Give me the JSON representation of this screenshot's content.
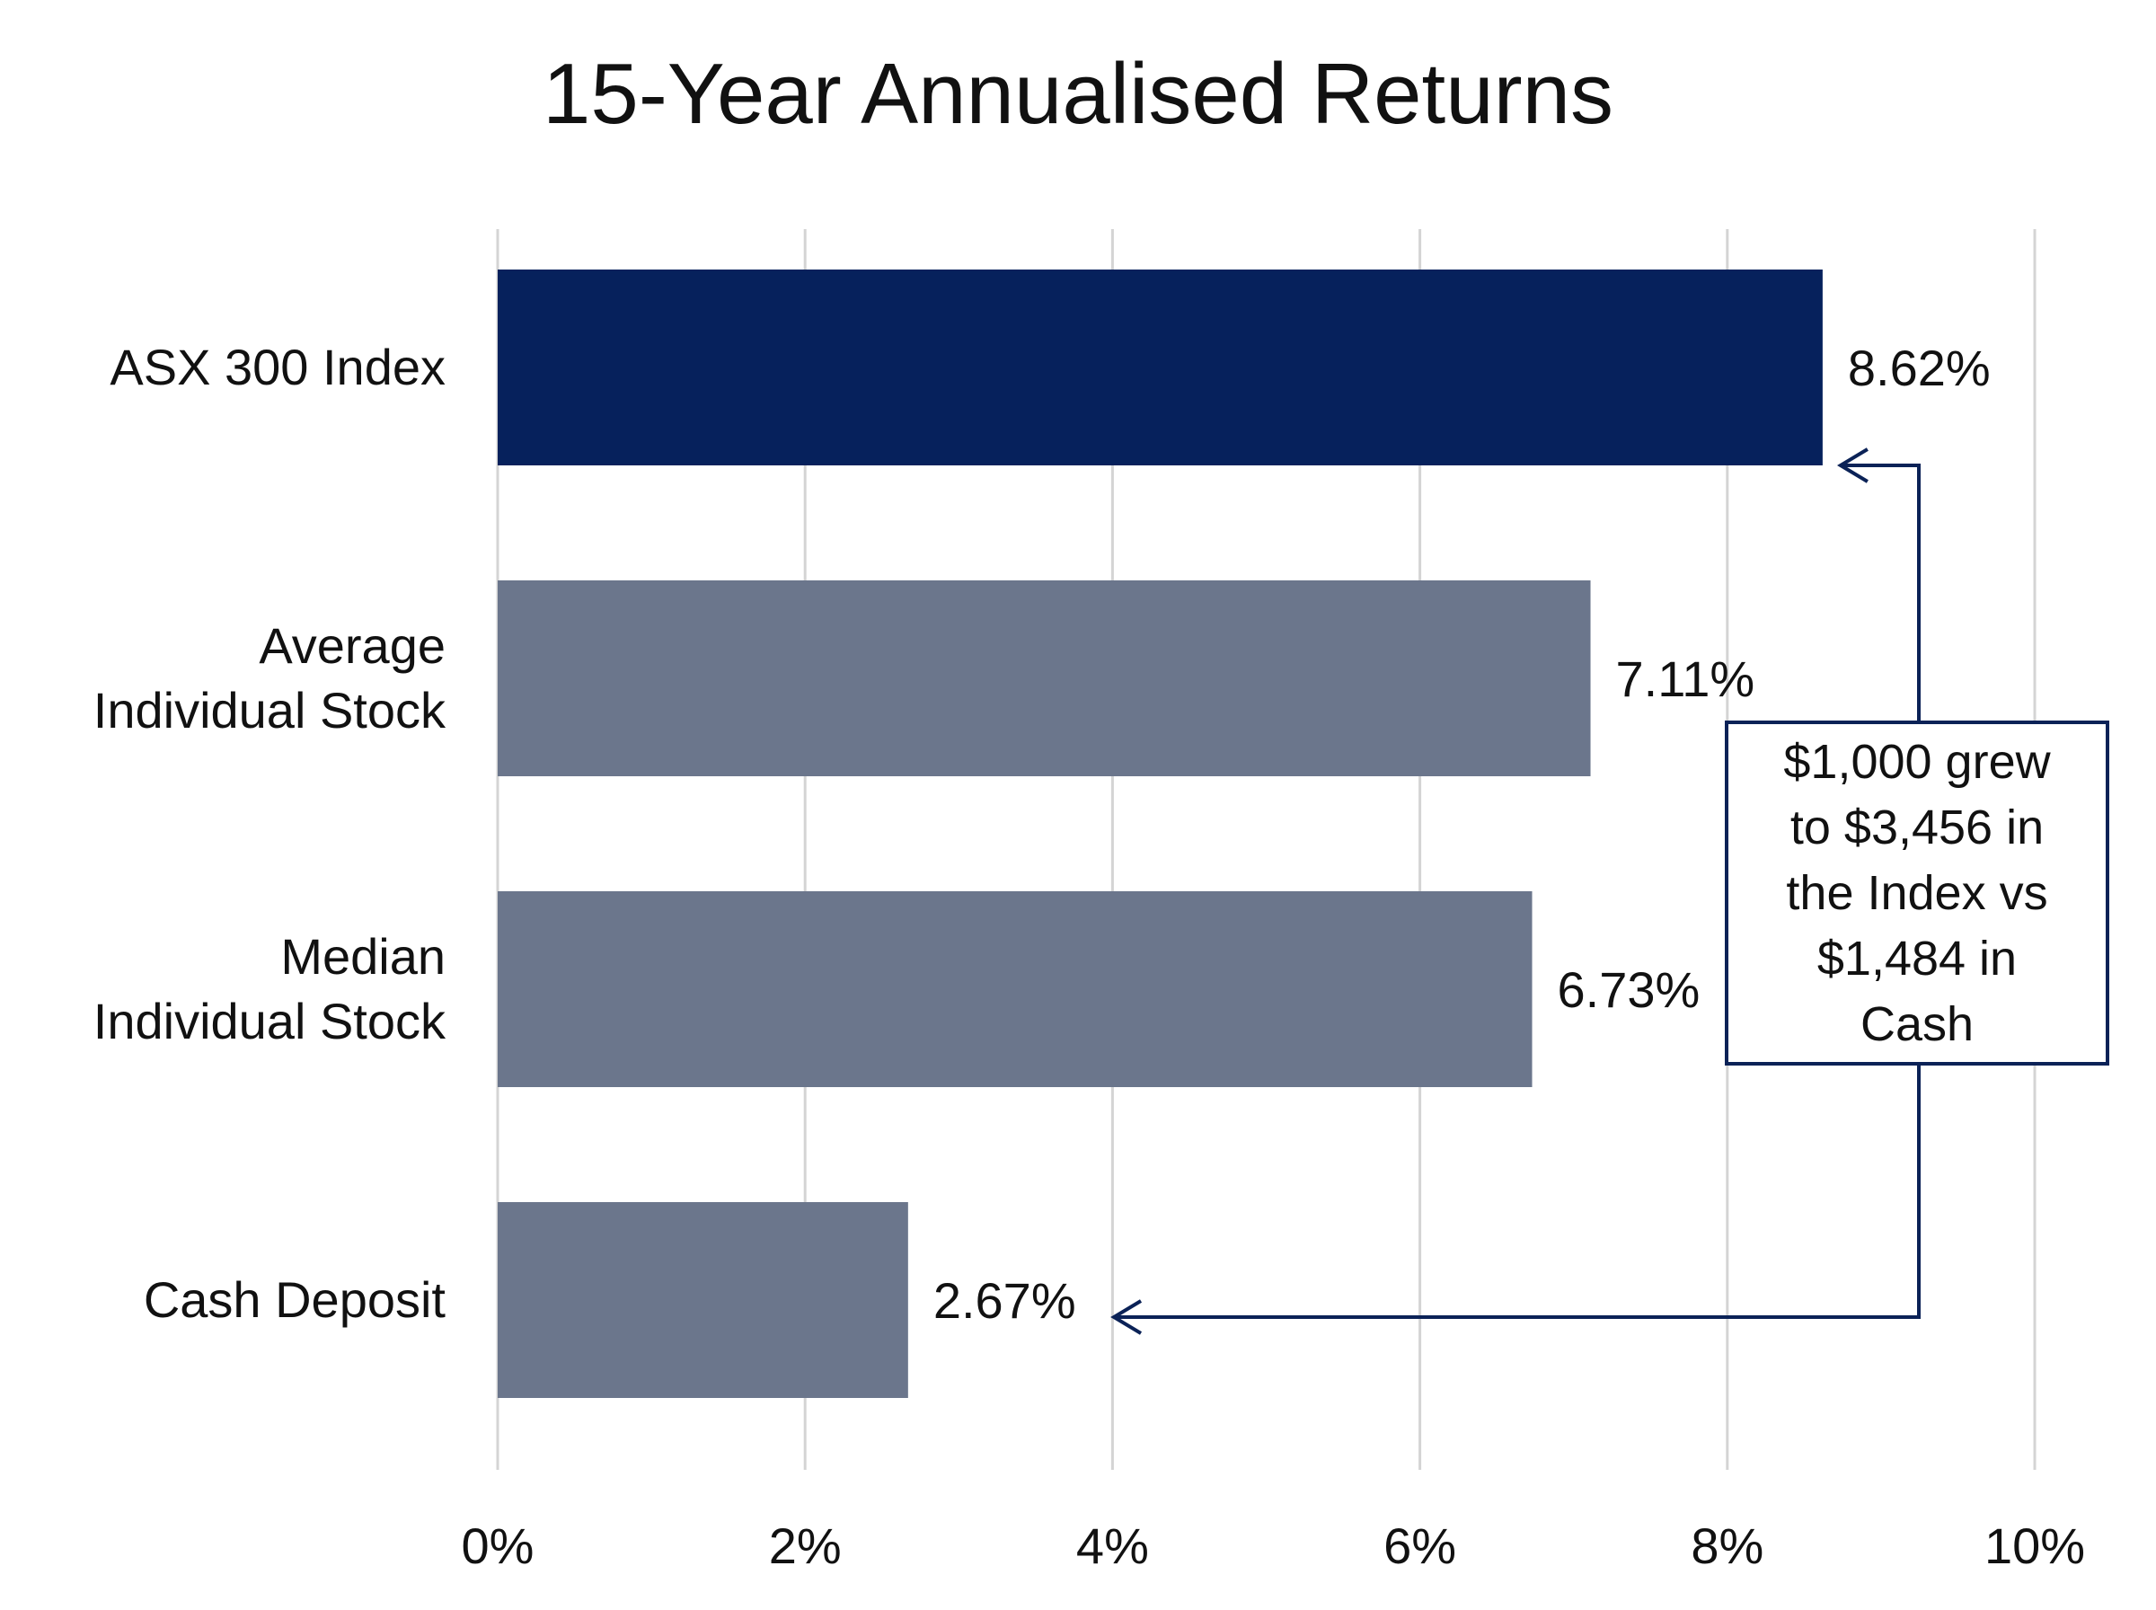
{
  "chart_data": {
    "type": "bar",
    "orientation": "horizontal",
    "title": "15-Year Annualised Returns",
    "xlabel": "",
    "ylabel": "",
    "categories": [
      "ASX 300 Index",
      "Average Individual Stock",
      "Median Individual Stock",
      "Cash Deposit"
    ],
    "category_lines": [
      [
        "ASX 300 Index"
      ],
      [
        "Average",
        "Individual Stock"
      ],
      [
        "Median",
        "Individual Stock"
      ],
      [
        "Cash Deposit"
      ]
    ],
    "values": [
      8.62,
      7.11,
      6.73,
      2.67
    ],
    "value_labels": [
      "8.62%",
      "7.11%",
      "6.73%",
      "2.67%"
    ],
    "xlim": [
      0,
      10
    ],
    "xticks": [
      0,
      2,
      4,
      6,
      8,
      10
    ],
    "xtick_labels": [
      "0%",
      "2%",
      "4%",
      "6%",
      "8%",
      "10%"
    ],
    "grid": true,
    "legend": "none",
    "colors": {
      "highlight": "#06215c",
      "bar": "#6b768c",
      "grid": "#d4d4d4",
      "annotation": "#0b2257",
      "text": "#111111"
    },
    "annotation": {
      "text": "$1,000 grew to $3,456 in the Index vs $1,484 in Cash",
      "lines": [
        "$1,000 grew",
        "to $3,456 in",
        "the Index vs",
        "$1,484 in",
        "Cash"
      ],
      "points_to": [
        "ASX 300 Index",
        "Cash Deposit"
      ]
    }
  }
}
